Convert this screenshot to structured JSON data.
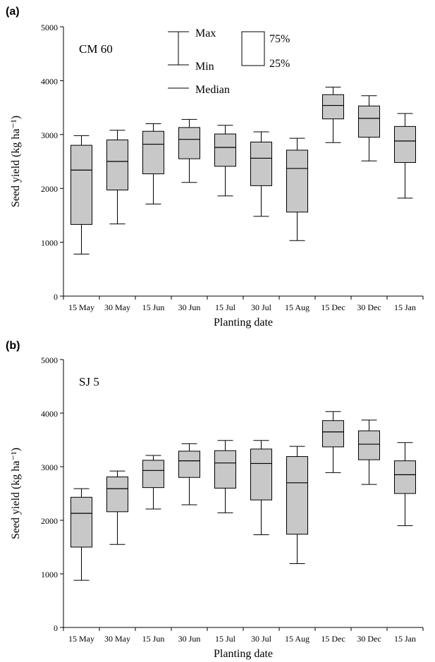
{
  "chart_data": [
    {
      "type": "box",
      "panel_label": "(a)",
      "cultivar": "CM 60",
      "xlabel": "Planting date",
      "ylabel": "Seed yield (kg ha⁻¹)",
      "ylim": [
        0,
        5000
      ],
      "yticks": [
        0,
        1000,
        2000,
        3000,
        4000,
        5000
      ],
      "categories": [
        "15 May",
        "30 May",
        "15 Jun",
        "30 Jun",
        "15 Jul",
        "30 Jul",
        "15 Aug",
        "15 Dec",
        "30 Dec",
        "15 Jan"
      ],
      "boxes": [
        {
          "min": 780,
          "q1": 1330,
          "median": 2340,
          "q3": 2800,
          "max": 2980
        },
        {
          "min": 1340,
          "q1": 1970,
          "median": 2500,
          "q3": 2900,
          "max": 3080
        },
        {
          "min": 1710,
          "q1": 2270,
          "median": 2820,
          "q3": 3060,
          "max": 3200
        },
        {
          "min": 2110,
          "q1": 2550,
          "median": 2910,
          "q3": 3130,
          "max": 3280
        },
        {
          "min": 1860,
          "q1": 2410,
          "median": 2760,
          "q3": 3010,
          "max": 3170
        },
        {
          "min": 1480,
          "q1": 2050,
          "median": 2560,
          "q3": 2860,
          "max": 3050
        },
        {
          "min": 1030,
          "q1": 1560,
          "median": 2370,
          "q3": 2710,
          "max": 2930
        },
        {
          "min": 2850,
          "q1": 3290,
          "median": 3540,
          "q3": 3740,
          "max": 3880
        },
        {
          "min": 2510,
          "q1": 2950,
          "median": 3300,
          "q3": 3530,
          "max": 3720
        },
        {
          "min": 1820,
          "q1": 2480,
          "median": 2880,
          "q3": 3150,
          "max": 3390
        }
      ],
      "legend": {
        "max": "Max",
        "min": "Min",
        "q3": "75%",
        "q1": "25%",
        "median": "Median"
      },
      "colors": {
        "box_fill": "#c8c8c8",
        "line": "#000000"
      }
    },
    {
      "type": "box",
      "panel_label": "(b)",
      "cultivar": "SJ 5",
      "xlabel": "Planting date",
      "ylabel": "Seed yield (kg ha⁻¹)",
      "ylim": [
        0,
        5000
      ],
      "yticks": [
        0,
        1000,
        2000,
        3000,
        4000,
        5000
      ],
      "categories": [
        "15 May",
        "30 May",
        "15 Jun",
        "30 Jun",
        "15 Jul",
        "30 Jul",
        "15 Aug",
        "15 Dec",
        "30 Dec",
        "15 Jan"
      ],
      "boxes": [
        {
          "min": 880,
          "q1": 1500,
          "median": 2130,
          "q3": 2430,
          "max": 2590
        },
        {
          "min": 1550,
          "q1": 2160,
          "median": 2590,
          "q3": 2810,
          "max": 2920
        },
        {
          "min": 2210,
          "q1": 2610,
          "median": 2930,
          "q3": 3120,
          "max": 3210
        },
        {
          "min": 2290,
          "q1": 2800,
          "median": 3110,
          "q3": 3290,
          "max": 3430
        },
        {
          "min": 2140,
          "q1": 2600,
          "median": 3070,
          "q3": 3300,
          "max": 3490
        },
        {
          "min": 1730,
          "q1": 2380,
          "median": 3060,
          "q3": 3330,
          "max": 3490
        },
        {
          "min": 1190,
          "q1": 1740,
          "median": 2700,
          "q3": 3190,
          "max": 3380
        },
        {
          "min": 2890,
          "q1": 3370,
          "median": 3650,
          "q3": 3860,
          "max": 4030
        },
        {
          "min": 2670,
          "q1": 3130,
          "median": 3420,
          "q3": 3670,
          "max": 3870
        },
        {
          "min": 1900,
          "q1": 2500,
          "median": 2850,
          "q3": 3110,
          "max": 3450
        }
      ],
      "colors": {
        "box_fill": "#c8c8c8",
        "line": "#000000"
      }
    }
  ]
}
